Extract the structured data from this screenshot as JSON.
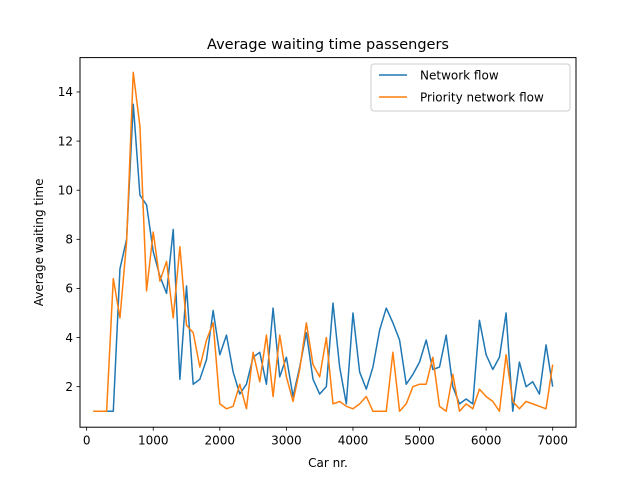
{
  "chart_data": {
    "type": "line",
    "title": "Average waiting time passengers",
    "xlabel": "Car nr.",
    "ylabel": "Average waiting time",
    "xlim": [
      -100,
      7350
    ],
    "ylim": [
      0.35,
      15.4
    ],
    "xticks": [
      0,
      1000,
      2000,
      3000,
      4000,
      5000,
      6000,
      7000
    ],
    "yticks": [
      2,
      4,
      6,
      8,
      10,
      12,
      14
    ],
    "grid": false,
    "legend_position": "top-right",
    "x": [
      100,
      200,
      300,
      400,
      500,
      600,
      700,
      800,
      900,
      1000,
      1100,
      1200,
      1300,
      1400,
      1500,
      1600,
      1700,
      1800,
      1900,
      2000,
      2100,
      2200,
      2300,
      2400,
      2500,
      2600,
      2700,
      2800,
      2900,
      3000,
      3100,
      3200,
      3300,
      3400,
      3500,
      3600,
      3700,
      3800,
      3900,
      4000,
      4100,
      4200,
      4300,
      4400,
      4500,
      4600,
      4700,
      4800,
      4900,
      5000,
      5100,
      5200,
      5300,
      5400,
      5500,
      5600,
      5700,
      5800,
      5900,
      6000,
      6100,
      6200,
      6300,
      6400,
      6500,
      6600,
      6700,
      6800,
      6900,
      7000
    ],
    "series": [
      {
        "name": "Network flow",
        "color": "#1f77b4",
        "values": [
          1.0,
          1.0,
          1.0,
          1.0,
          6.8,
          8.0,
          13.5,
          9.8,
          9.4,
          7.5,
          6.5,
          5.8,
          8.4,
          2.3,
          6.1,
          2.1,
          2.3,
          3.1,
          5.1,
          3.3,
          4.1,
          2.6,
          1.7,
          2.1,
          3.2,
          3.4,
          2.1,
          5.2,
          2.4,
          3.2,
          1.6,
          2.8,
          4.2,
          2.3,
          1.7,
          2.0,
          5.4,
          2.8,
          1.3,
          5.0,
          2.6,
          1.9,
          2.8,
          4.3,
          5.2,
          4.6,
          3.9,
          2.1,
          2.5,
          3.0,
          3.9,
          2.7,
          2.8,
          4.1,
          2.0,
          1.3,
          1.5,
          1.3,
          4.7,
          3.3,
          2.7,
          3.2,
          5.0,
          1.0,
          3.0,
          2.0,
          2.2,
          1.7,
          3.7,
          2.0
        ]
      },
      {
        "name": "Priority network flow",
        "color": "#ff7f0e",
        "values": [
          1.0,
          1.0,
          1.0,
          6.4,
          4.8,
          7.9,
          14.8,
          12.6,
          5.9,
          8.3,
          6.3,
          7.1,
          4.8,
          7.7,
          4.5,
          4.2,
          2.8,
          3.9,
          4.6,
          1.3,
          1.1,
          1.2,
          2.1,
          1.1,
          3.4,
          2.2,
          4.1,
          1.6,
          4.1,
          2.4,
          1.4,
          2.7,
          4.6,
          2.9,
          2.4,
          4.0,
          1.3,
          1.4,
          1.2,
          1.1,
          1.3,
          1.6,
          1.0,
          1.0,
          1.0,
          3.4,
          1.0,
          1.3,
          2.0,
          2.1,
          2.1,
          3.2,
          1.2,
          1.0,
          2.5,
          1.0,
          1.3,
          1.1,
          1.9,
          1.6,
          1.4,
          1.0,
          3.3,
          1.4,
          1.1,
          1.4,
          1.3,
          1.2,
          1.1,
          2.9
        ]
      }
    ]
  }
}
